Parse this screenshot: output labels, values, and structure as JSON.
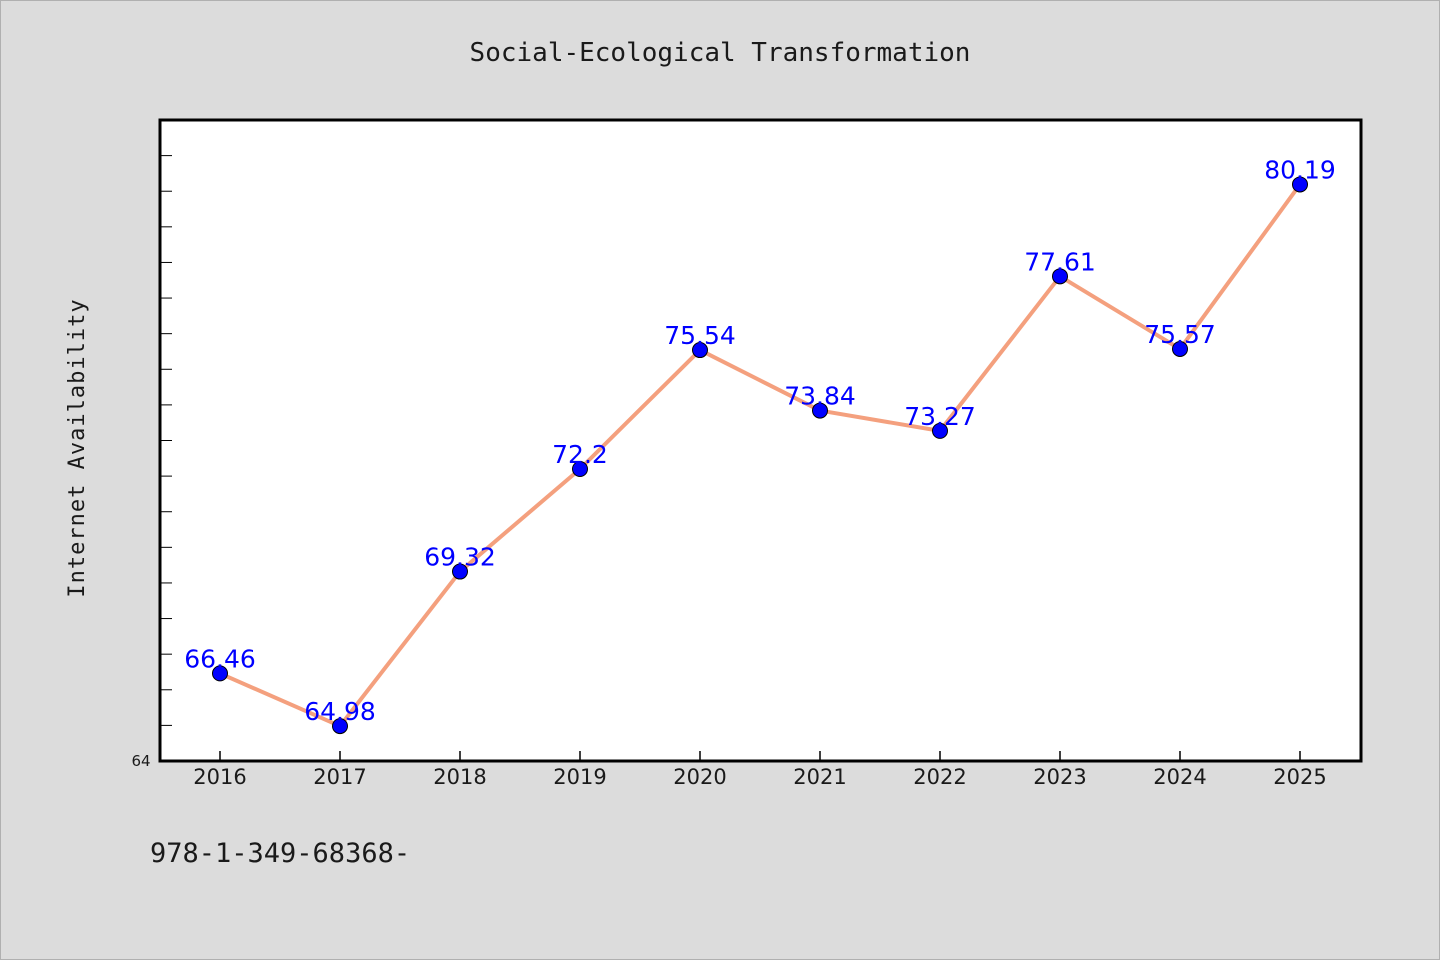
{
  "chart_data": {
    "type": "line",
    "title": "Social-Ecological Transformation",
    "xlabel": "",
    "ylabel": "Internet Availability",
    "categories": [
      "2016",
      "2017",
      "2018",
      "2019",
      "2020",
      "2021",
      "2022",
      "2023",
      "2024",
      "2025"
    ],
    "series": [
      {
        "values": [
          66.46,
          64.98,
          69.32,
          72.2,
          75.54,
          73.84,
          73.27,
          77.61,
          75.57,
          80.19
        ],
        "labels": [
          "66.46",
          "64.98",
          "69.32",
          "72.2",
          "75.54",
          "73.84",
          "73.27",
          "77.61",
          "75.57",
          "80.19"
        ]
      }
    ],
    "ylim": [
      64,
      82
    ],
    "ymin_tick_label": "64",
    "grid": false,
    "legend": "none",
    "colors": {
      "line": "#f4a07e",
      "marker": "#0000ff",
      "data_label": "#0000ff",
      "plot_background": "#ffffff",
      "figure_background": "#dcdcdc"
    }
  },
  "footer": {
    "text": "978-1-349-68368-"
  }
}
